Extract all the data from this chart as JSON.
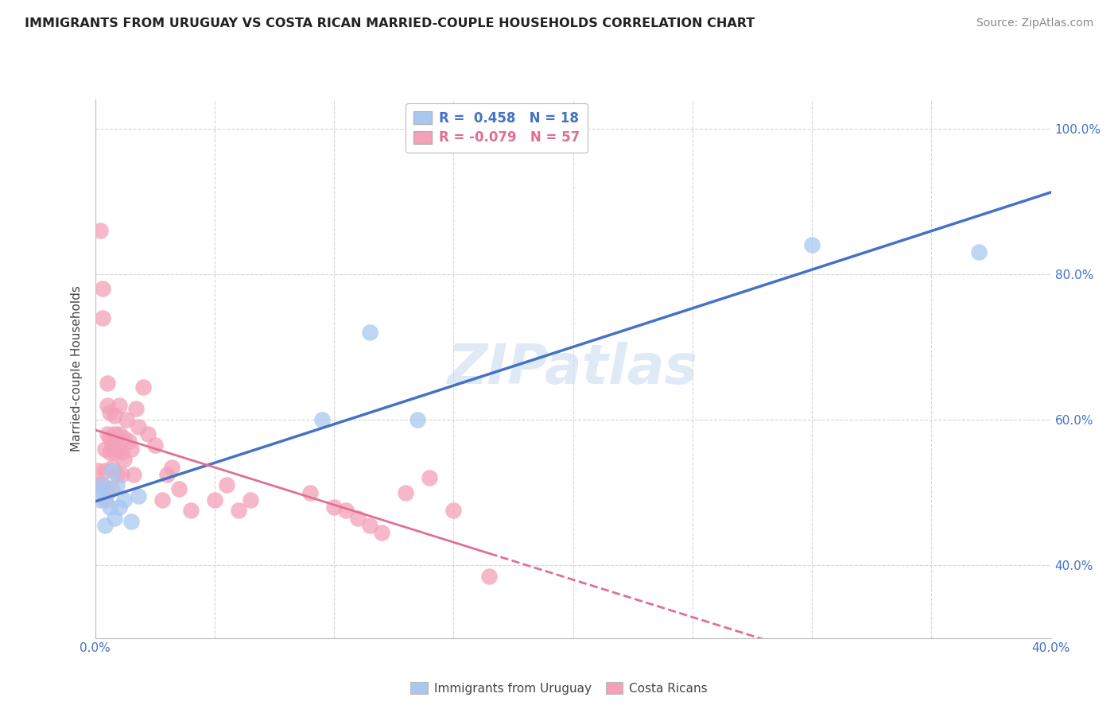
{
  "title": "IMMIGRANTS FROM URUGUAY VS COSTA RICAN MARRIED-COUPLE HOUSEHOLDS CORRELATION CHART",
  "source": "Source: ZipAtlas.com",
  "ylabel": "Married-couple Households",
  "r_blue": 0.458,
  "n_blue": 18,
  "r_pink": -0.079,
  "n_pink": 57,
  "legend_label_blue": "Immigrants from Uruguay",
  "legend_label_pink": "Costa Ricans",
  "blue_color": "#a8c8f0",
  "pink_color": "#f4a0b8",
  "trendline_blue": "#4472c4",
  "trendline_pink": "#e07090",
  "watermark": "ZIPatlas",
  "blue_scatter_x": [
    0.001,
    0.002,
    0.003,
    0.004,
    0.005,
    0.006,
    0.007,
    0.008,
    0.009,
    0.01,
    0.012,
    0.015,
    0.018,
    0.095,
    0.115,
    0.135,
    0.3,
    0.37
  ],
  "blue_scatter_y": [
    0.505,
    0.49,
    0.51,
    0.455,
    0.5,
    0.48,
    0.53,
    0.465,
    0.51,
    0.48,
    0.49,
    0.46,
    0.495,
    0.6,
    0.72,
    0.6,
    0.84,
    0.83
  ],
  "pink_scatter_x": [
    0.001,
    0.001,
    0.002,
    0.003,
    0.003,
    0.003,
    0.004,
    0.004,
    0.004,
    0.005,
    0.005,
    0.005,
    0.006,
    0.006,
    0.006,
    0.007,
    0.007,
    0.007,
    0.008,
    0.008,
    0.008,
    0.009,
    0.009,
    0.01,
    0.01,
    0.011,
    0.011,
    0.012,
    0.012,
    0.013,
    0.014,
    0.015,
    0.016,
    0.017,
    0.018,
    0.02,
    0.022,
    0.025,
    0.028,
    0.03,
    0.032,
    0.035,
    0.04,
    0.05,
    0.055,
    0.06,
    0.065,
    0.09,
    0.1,
    0.105,
    0.11,
    0.115,
    0.12,
    0.13,
    0.14,
    0.15,
    0.165
  ],
  "pink_scatter_y": [
    0.51,
    0.53,
    0.86,
    0.78,
    0.74,
    0.51,
    0.56,
    0.53,
    0.49,
    0.65,
    0.62,
    0.58,
    0.61,
    0.575,
    0.555,
    0.565,
    0.535,
    0.505,
    0.605,
    0.58,
    0.555,
    0.56,
    0.525,
    0.62,
    0.58,
    0.555,
    0.525,
    0.575,
    0.545,
    0.6,
    0.57,
    0.56,
    0.525,
    0.615,
    0.59,
    0.645,
    0.58,
    0.565,
    0.49,
    0.525,
    0.535,
    0.505,
    0.475,
    0.49,
    0.51,
    0.475,
    0.49,
    0.5,
    0.48,
    0.475,
    0.465,
    0.455,
    0.445,
    0.5,
    0.52,
    0.475,
    0.385
  ],
  "xlim": [
    0.0,
    0.4
  ],
  "ylim": [
    0.3,
    1.04
  ],
  "yticks": [
    0.4,
    0.6,
    0.8,
    1.0
  ],
  "ytick_labels": [
    "40.0%",
    "60.0%",
    "80.0%",
    "100.0%"
  ],
  "xtick_left_label": "0.0%",
  "xtick_right_label": "40.0%"
}
